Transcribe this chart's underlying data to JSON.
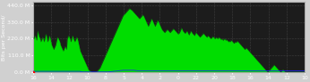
{
  "title": "",
  "ylabel": "Bits per Second/",
  "ylim": [
    0,
    460
  ],
  "yticks": [
    0,
    110,
    220,
    330,
    440
  ],
  "ytick_labels": [
    "0.0 M",
    "110.0 M",
    "220.0 M",
    "330.0 M",
    "440.0 M"
  ],
  "xtick_labels": [
    "16",
    "14",
    "12",
    "10",
    "8",
    "5",
    "4",
    "2",
    "0",
    "22",
    "20",
    "18",
    "16",
    "14",
    "12",
    "10"
  ],
  "outer_bg": "#d0d0d0",
  "plot_bg_color": "#1c1c1c",
  "grid_color": "#555555",
  "green_color": "#00dd00",
  "blue_color": "#2222ff",
  "n_points": 400,
  "green_values": [
    230,
    220,
    230,
    240,
    220,
    210,
    250,
    270,
    240,
    230,
    220,
    200,
    210,
    220,
    230,
    210,
    200,
    220,
    240,
    250,
    220,
    200,
    210,
    230,
    240,
    220,
    200,
    180,
    170,
    160,
    150,
    160,
    170,
    180,
    200,
    220,
    230,
    220,
    210,
    200,
    180,
    170,
    160,
    150,
    140,
    150,
    160,
    170,
    160,
    150,
    220,
    230,
    240,
    230,
    220,
    200,
    210,
    230,
    240,
    220,
    210,
    200,
    210,
    220,
    230,
    220,
    200,
    180,
    160,
    140,
    130,
    120,
    110,
    100,
    90,
    80,
    70,
    60,
    50,
    40,
    30,
    20,
    15,
    12,
    10,
    8,
    6,
    5,
    5,
    5,
    5,
    5,
    6,
    8,
    10,
    15,
    20,
    25,
    30,
    40,
    50,
    60,
    70,
    80,
    90,
    100,
    110,
    120,
    130,
    140,
    150,
    160,
    170,
    180,
    190,
    200,
    210,
    220,
    230,
    240,
    250,
    260,
    270,
    280,
    290,
    300,
    310,
    320,
    330,
    340,
    350,
    360,
    370,
    375,
    380,
    385,
    390,
    395,
    400,
    405,
    410,
    415,
    415,
    412,
    408,
    405,
    400,
    395,
    390,
    385,
    380,
    375,
    370,
    365,
    360,
    355,
    350,
    355,
    360,
    365,
    370,
    375,
    370,
    360,
    350,
    340,
    330,
    320,
    310,
    300,
    310,
    320,
    330,
    340,
    350,
    340,
    330,
    320,
    310,
    300,
    310,
    320,
    330,
    340,
    330,
    320,
    310,
    300,
    290,
    280,
    275,
    270,
    265,
    260,
    265,
    270,
    275,
    280,
    275,
    270,
    265,
    260,
    265,
    270,
    275,
    280,
    285,
    280,
    275,
    270,
    265,
    260,
    255,
    250,
    255,
    260,
    270,
    280,
    290,
    280,
    270,
    265,
    260,
    255,
    260,
    265,
    270,
    260,
    250,
    245,
    255,
    265,
    270,
    260,
    255,
    250,
    245,
    240,
    250,
    260,
    255,
    250,
    245,
    240,
    235,
    230,
    235,
    240,
    245,
    250,
    255,
    250,
    245,
    240,
    235,
    230,
    235,
    240,
    235,
    230,
    225,
    220,
    225,
    230,
    235,
    230,
    225,
    220,
    225,
    230,
    225,
    220,
    225,
    230,
    225,
    220,
    215,
    220,
    215,
    210,
    215,
    220,
    215,
    210,
    215,
    210,
    205,
    200,
    205,
    200,
    205,
    210,
    205,
    200,
    195,
    190,
    195,
    200,
    195,
    200,
    205,
    200,
    195,
    190,
    185,
    180,
    175,
    170,
    165,
    160,
    155,
    150,
    155,
    160,
    155,
    150,
    145,
    140,
    135,
    130,
    125,
    120,
    115,
    110,
    105,
    100,
    95,
    90,
    85,
    80,
    75,
    70,
    65,
    60,
    55,
    50,
    45,
    40,
    35,
    30,
    25,
    20,
    15,
    10,
    5,
    5,
    10,
    15,
    20,
    25,
    30,
    35,
    40,
    45,
    50,
    45,
    40,
    35,
    30,
    25,
    20,
    15,
    10,
    5,
    5,
    10,
    15,
    20,
    15,
    10,
    5,
    5,
    5,
    5,
    5,
    5,
    5,
    5,
    5,
    5,
    5,
    5,
    5,
    5,
    5,
    5,
    5,
    5,
    5,
    5,
    5,
    5,
    5,
    5,
    5,
    5,
    5,
    5,
    5,
    5
  ],
  "blue_values": [
    8,
    8,
    8,
    8,
    8,
    8,
    8,
    8,
    8,
    8,
    8,
    8,
    8,
    8,
    8,
    8,
    8,
    8,
    8,
    8,
    8,
    8,
    8,
    8,
    8,
    8,
    8,
    8,
    8,
    8,
    8,
    8,
    8,
    8,
    8,
    8,
    8,
    8,
    8,
    8,
    8,
    8,
    8,
    8,
    8,
    8,
    8,
    8,
    8,
    8,
    8,
    8,
    8,
    8,
    8,
    8,
    8,
    8,
    8,
    8,
    8,
    8,
    8,
    8,
    8,
    8,
    8,
    8,
    8,
    8,
    6,
    5,
    4,
    4,
    4,
    4,
    4,
    4,
    4,
    4,
    4,
    4,
    4,
    4,
    4,
    4,
    4,
    4,
    4,
    4,
    4,
    4,
    4,
    4,
    4,
    4,
    4,
    4,
    4,
    4,
    4,
    4,
    4,
    4,
    4,
    4,
    4,
    4,
    4,
    4,
    4,
    4,
    5,
    5,
    6,
    6,
    7,
    7,
    8,
    8,
    9,
    9,
    10,
    10,
    11,
    11,
    12,
    12,
    13,
    13,
    14,
    14,
    15,
    15,
    15,
    15,
    15,
    15,
    15,
    15,
    15,
    15,
    15,
    15,
    15,
    15,
    15,
    15,
    15,
    14,
    14,
    13,
    13,
    12,
    12,
    12,
    12,
    12,
    12,
    12,
    12,
    12,
    12,
    12,
    12,
    12,
    12,
    12,
    12,
    12,
    12,
    12,
    12,
    12,
    12,
    12,
    12,
    12,
    12,
    12,
    12,
    12,
    12,
    12,
    12,
    12,
    12,
    12,
    12,
    12,
    12,
    12,
    12,
    12,
    12,
    12,
    12,
    12,
    12,
    12,
    12,
    12,
    12,
    12,
    12,
    12,
    12,
    12,
    12,
    12,
    12,
    12,
    12,
    12,
    12,
    12,
    12,
    12,
    12,
    12,
    12,
    12,
    12,
    12,
    12,
    12,
    12,
    12,
    12,
    12,
    12,
    12,
    12,
    12,
    12,
    12,
    12,
    12,
    12,
    12,
    12,
    12,
    12,
    12,
    12,
    12,
    12,
    12,
    12,
    12,
    12,
    12,
    12,
    12,
    12,
    12,
    12,
    12,
    12,
    12,
    12,
    12,
    12,
    12,
    12,
    12,
    12,
    12,
    12,
    12,
    12,
    12,
    12,
    12,
    12,
    12,
    12,
    12,
    12,
    12,
    12,
    12,
    12,
    12,
    12,
    12,
    12,
    12,
    12,
    12,
    12,
    12,
    12,
    12,
    12,
    12,
    12,
    12,
    12,
    12,
    12,
    12,
    12,
    12,
    12,
    12,
    12,
    12,
    12,
    12,
    12,
    12,
    12,
    12,
    12,
    12,
    12,
    12,
    12,
    12,
    12,
    12,
    12,
    12,
    12,
    12,
    12,
    12,
    12,
    12,
    12,
    12,
    12,
    12,
    12,
    12,
    12,
    12,
    12,
    12,
    12,
    12,
    12,
    12,
    12,
    12,
    12,
    12,
    12,
    12,
    12,
    12,
    12,
    12,
    12,
    12,
    12,
    12,
    12,
    12,
    12,
    12,
    12,
    12,
    12,
    12,
    12,
    12,
    12,
    12,
    12,
    12,
    12,
    12,
    12,
    12,
    12,
    12,
    12,
    12,
    12,
    12,
    12,
    12,
    12,
    12,
    12,
    12,
    12,
    12,
    12,
    12,
    12,
    12,
    12,
    12,
    12,
    12,
    12,
    12
  ],
  "label_fontsize": 4.5,
  "ylabel_fontsize": 4.5
}
